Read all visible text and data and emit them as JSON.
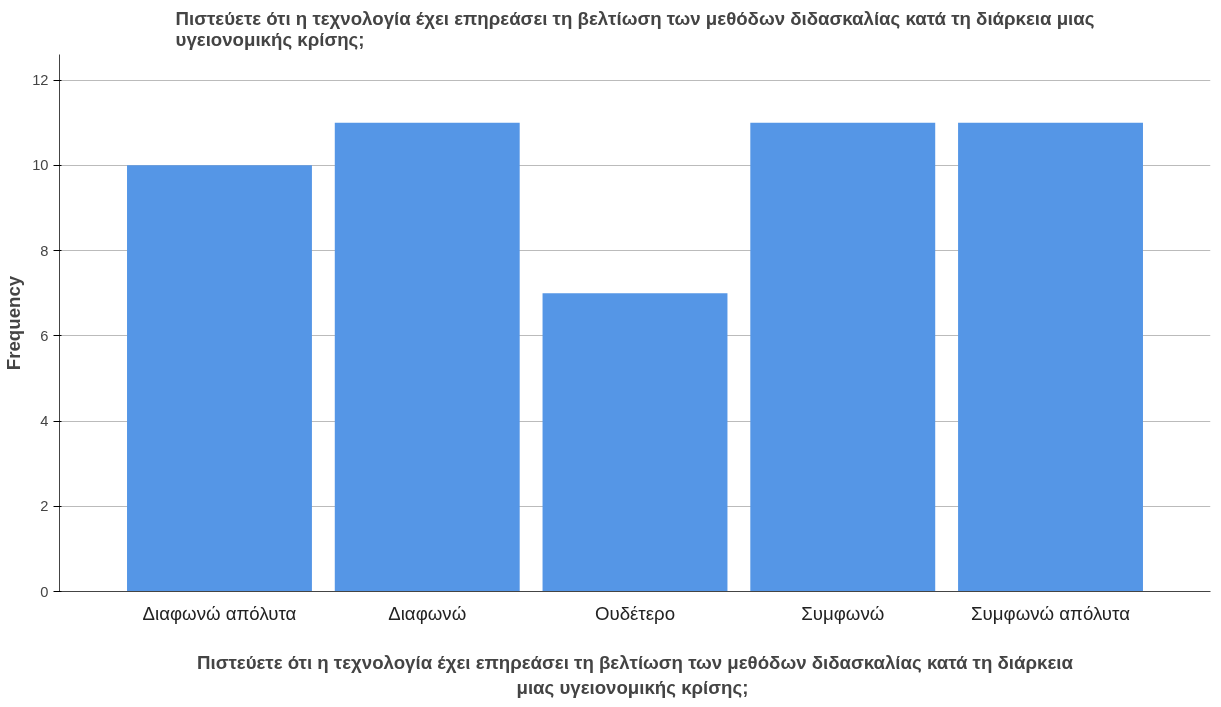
{
  "chart_data": {
    "type": "bar",
    "title": "Πιστεύετε ότι η τεχνολογία έχει επηρεάσει τη βελτίωση των μεθόδων διδασκαλίας κατά τη διάρκεια μιας\nυγειονομικής κρίσης;",
    "xlabel": "Πιστεύετε ότι η τεχνολογία έχει επηρεάσει τη βελτίωση των μεθόδων διδασκαλίας κατά τη διάρκεια\nμιας  υγειονομικής κρίσης;",
    "ylabel": "Frequency",
    "categories": [
      "Διαφωνώ απόλυτα",
      "Διαφωνώ",
      "Ουδέτερο",
      "Συμφωνώ",
      "Συμφωνώ απόλυτα"
    ],
    "values": [
      10,
      11,
      7,
      11,
      11
    ],
    "color": "#5596e6",
    "ylim": [
      0,
      12.6
    ],
    "yticks": [
      0,
      2,
      4,
      6,
      8,
      10,
      12
    ],
    "grid": "y"
  }
}
